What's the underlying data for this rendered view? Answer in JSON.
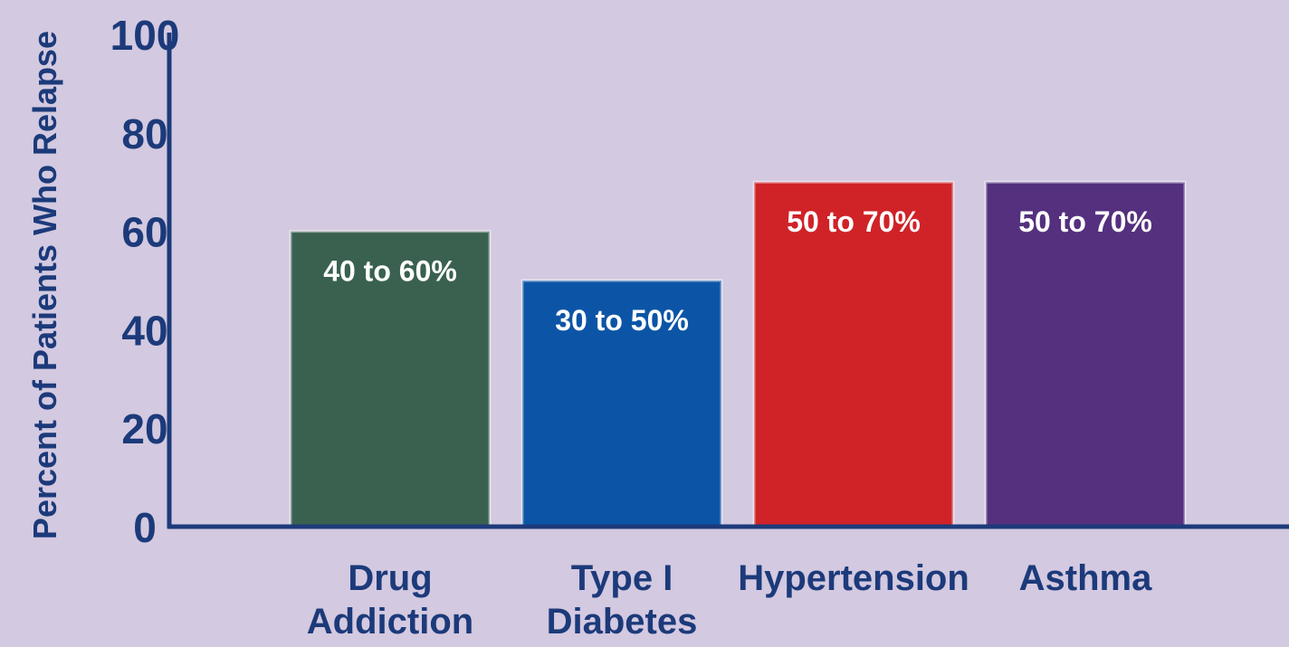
{
  "chart_data": {
    "type": "bar",
    "ylabel": "Percent of Patients Who Relapse",
    "ylim": [
      0,
      100
    ],
    "yticks": [
      "0",
      "20",
      "40",
      "60",
      "80",
      "100"
    ],
    "grid": false,
    "categories": [
      [
        "Drug",
        "Addiction"
      ],
      [
        "Type I",
        "Diabetes"
      ],
      [
        "Hypertension"
      ],
      [
        "Asthma"
      ]
    ],
    "values": [
      60,
      50,
      70,
      70
    ],
    "range_low": [
      40,
      30,
      50,
      50
    ],
    "data_labels": [
      "40 to 60%",
      "30 to 50%",
      "50 to 70%",
      "50 to 70%"
    ],
    "colors": [
      "#3a6150",
      "#0c55a6",
      "#cf2328",
      "#54307e"
    ],
    "background_color": "#d3c9e0",
    "axis_color": "#1c3a7a"
  }
}
